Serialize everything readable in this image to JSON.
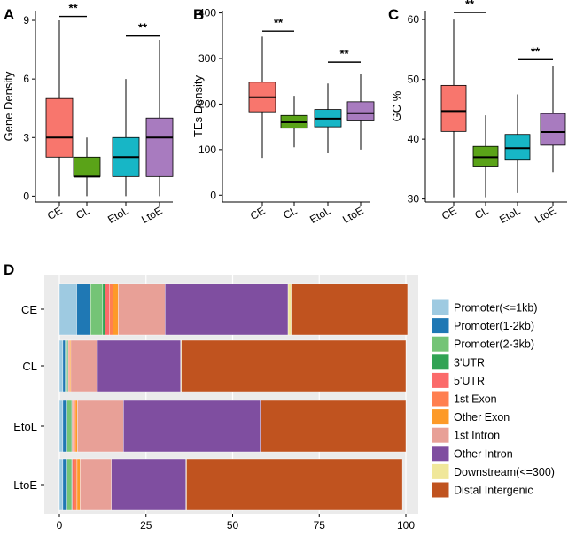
{
  "chart_data": [
    {
      "panel": "A",
      "type": "boxplot",
      "ylabel": "Gene Density",
      "categories": [
        "CE",
        "CL",
        "EtoL",
        "LtoE"
      ],
      "ylim": [
        -0.3,
        9.5
      ],
      "yticks": [
        0,
        3,
        6,
        9
      ],
      "colors": [
        "#f8766d",
        "#5aa318",
        "#17b6c6",
        "#a87bbf"
      ],
      "boxes": [
        {
          "min": 0,
          "q1": 2,
          "median": 3,
          "q3": 5,
          "max": 9
        },
        {
          "min": 0,
          "q1": 1,
          "median": 1,
          "q3": 2,
          "max": 3
        },
        {
          "min": 0,
          "q1": 1,
          "median": 2,
          "q3": 3,
          "max": 6
        },
        {
          "min": 0,
          "q1": 1,
          "median": 3,
          "q3": 4,
          "max": 8
        }
      ],
      "significance": [
        {
          "from": 0,
          "to": 1,
          "label": "**",
          "y": 9.2
        },
        {
          "from": 2,
          "to": 3,
          "label": "**",
          "y": 8.2
        }
      ]
    },
    {
      "panel": "B",
      "type": "boxplot",
      "ylabel": "TEs Density",
      "categories": [
        "CE",
        "CL",
        "EtoL",
        "LtoE"
      ],
      "ylim": [
        -15,
        405
      ],
      "yticks": [
        0,
        100,
        200,
        300,
        400
      ],
      "colors": [
        "#f8766d",
        "#5aa318",
        "#17b6c6",
        "#a87bbf"
      ],
      "boxes": [
        {
          "min": 82,
          "q1": 183,
          "median": 215,
          "q3": 248,
          "max": 348
        },
        {
          "min": 105,
          "q1": 147,
          "median": 160,
          "q3": 175,
          "max": 218
        },
        {
          "min": 92,
          "q1": 150,
          "median": 168,
          "q3": 188,
          "max": 245
        },
        {
          "min": 100,
          "q1": 163,
          "median": 180,
          "q3": 205,
          "max": 265
        }
      ],
      "significance": [
        {
          "from": 0,
          "to": 1,
          "label": "**",
          "y": 360
        },
        {
          "from": 2,
          "to": 3,
          "label": "**",
          "y": 292
        }
      ]
    },
    {
      "panel": "C",
      "type": "boxplot",
      "ylabel": "GC %",
      "categories": [
        "CE",
        "CL",
        "EtoL",
        "LtoE"
      ],
      "ylim": [
        29.5,
        61.5
      ],
      "yticks": [
        30,
        40,
        50,
        60
      ],
      "colors": [
        "#f8766d",
        "#5aa318",
        "#17b6c6",
        "#a87bbf"
      ],
      "boxes": [
        {
          "min": 30.3,
          "q1": 41.3,
          "median": 44.7,
          "q3": 49,
          "max": 60
        },
        {
          "min": 30.3,
          "q1": 35.5,
          "median": 37,
          "q3": 38.8,
          "max": 44
        },
        {
          "min": 31,
          "q1": 36.5,
          "median": 38.5,
          "q3": 40.8,
          "max": 47.5
        },
        {
          "min": 34.5,
          "q1": 39,
          "median": 41.2,
          "q3": 44.3,
          "max": 52.3
        }
      ],
      "significance": [
        {
          "from": 0,
          "to": 1,
          "label": "**",
          "y": 61.2
        },
        {
          "from": 2,
          "to": 3,
          "label": "**",
          "y": 53.3
        }
      ]
    },
    {
      "panel": "D",
      "type": "stacked_bar_horizontal",
      "categories": [
        "CE",
        "CL",
        "EtoL",
        "LtoE"
      ],
      "xlim": [
        0,
        100
      ],
      "xticks": [
        0,
        25,
        50,
        75,
        100
      ],
      "series": [
        {
          "name": "Promoter(<=1kb)",
          "color": "#9ecae1",
          "values": [
            5,
            1,
            1,
            1
          ]
        },
        {
          "name": "Promoter(1-2kb)",
          "color": "#1f78b4",
          "values": [
            4,
            0.7,
            1.2,
            1.2
          ]
        },
        {
          "name": "Promoter(2-3kb)",
          "color": "#74c476",
          "values": [
            3.5,
            0.5,
            1.2,
            1.2
          ]
        },
        {
          "name": "3'UTR",
          "color": "#31a354",
          "values": [
            0.7,
            0.3,
            0.3,
            0.3
          ]
        },
        {
          "name": "5'UTR",
          "color": "#fb6a6a",
          "values": [
            1.3,
            0.2,
            0.3,
            0.5
          ]
        },
        {
          "name": "1st Exon",
          "color": "#ff7f50",
          "values": [
            0.9,
            0.3,
            0.6,
            0.9
          ]
        },
        {
          "name": "Other Exon",
          "color": "#fd9a28",
          "values": [
            1.6,
            0.3,
            0.6,
            0.9
          ]
        },
        {
          "name": "1st Intron",
          "color": "#e8a097",
          "values": [
            13.5,
            7.7,
            13.3,
            9
          ]
        },
        {
          "name": "Other Intron",
          "color": "#7f4ea0",
          "values": [
            35.5,
            24,
            39.5,
            21.5
          ]
        },
        {
          "name": "Downstream(<=300)",
          "color": "#f0e79a",
          "values": [
            0.9,
            0.2,
            0.2,
            0.2
          ]
        },
        {
          "name": "Distal Intergenic",
          "color": "#c0531f",
          "values": [
            33.6,
            64.8,
            41.8,
            62.3
          ]
        }
      ]
    }
  ]
}
